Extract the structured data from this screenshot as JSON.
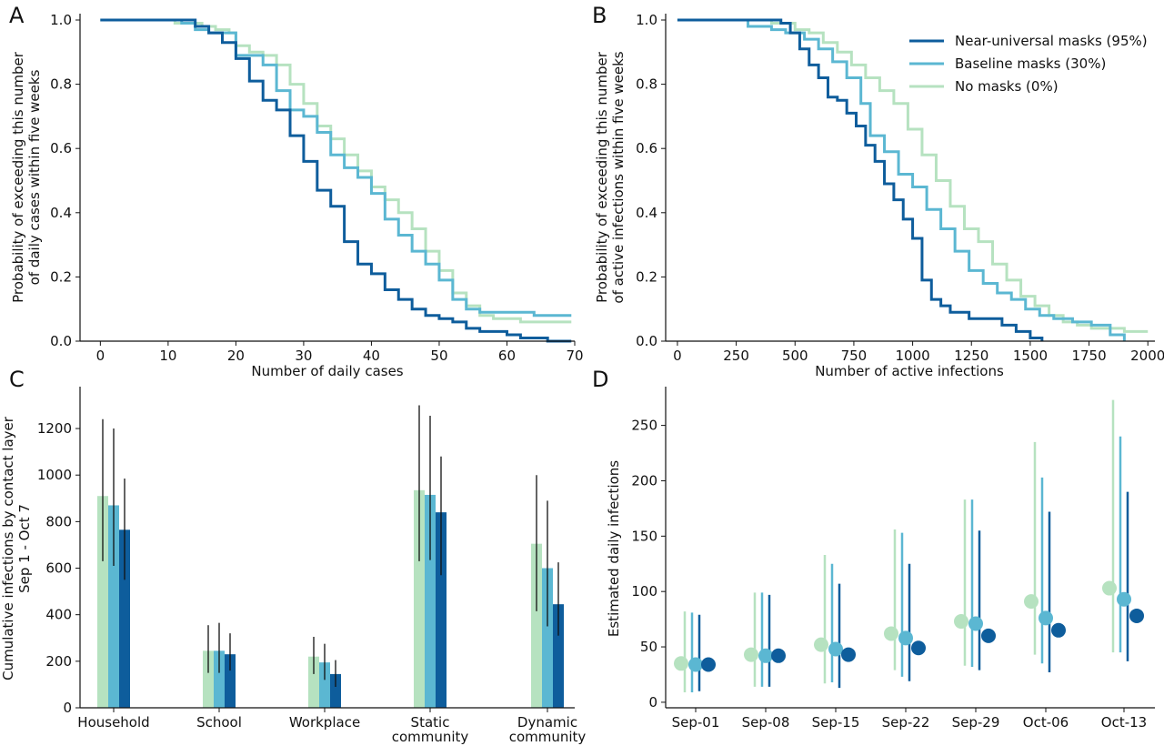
{
  "colors": {
    "near_universal": "#0e5d9c",
    "baseline": "#5bb7d2",
    "no_masks": "#b6e2c0",
    "errorbar_c": "#111111"
  },
  "chart_data": [
    {
      "id": "A",
      "type": "line",
      "panel_label": "A",
      "xlabel": "Number of daily cases",
      "ylabel": [
        "Probability of exceeding this number",
        "of daily cases within five weeks"
      ],
      "xlim": [
        -3,
        70
      ],
      "ylim": [
        0,
        1
      ],
      "xticks": [
        0,
        10,
        20,
        30,
        40,
        50,
        60,
        70
      ],
      "yticks": [
        0.0,
        0.2,
        0.4,
        0.6,
        0.8,
        1.0
      ],
      "yticklabels": [
        "0.0",
        "0.2",
        "0.4",
        "0.6",
        "0.8",
        "1.0"
      ],
      "series": [
        {
          "key": "no_masks",
          "x": [
            0,
            7,
            11,
            13,
            15,
            17,
            19,
            20,
            22,
            24,
            26,
            28,
            30,
            32,
            34,
            36,
            38,
            40,
            42,
            44,
            46,
            48,
            50,
            52,
            54,
            56,
            58,
            60,
            62,
            64,
            66,
            69.5
          ],
          "y": [
            1,
            1,
            0.99,
            0.99,
            0.98,
            0.97,
            0.96,
            0.92,
            0.9,
            0.89,
            0.86,
            0.8,
            0.74,
            0.67,
            0.63,
            0.58,
            0.53,
            0.48,
            0.44,
            0.4,
            0.35,
            0.28,
            0.22,
            0.15,
            0.11,
            0.08,
            0.07,
            0.07,
            0.06,
            0.06,
            0.06,
            0.06
          ]
        },
        {
          "key": "baseline",
          "x": [
            0,
            7,
            12,
            14,
            16,
            18,
            19,
            20,
            22,
            24,
            26,
            28,
            30,
            32,
            34,
            36,
            38,
            40,
            42,
            44,
            46,
            48,
            50,
            52,
            54,
            56,
            58,
            60,
            62,
            64,
            66,
            69.5
          ],
          "y": [
            1,
            1,
            0.99,
            0.97,
            0.96,
            0.96,
            0.96,
            0.89,
            0.89,
            0.86,
            0.78,
            0.72,
            0.7,
            0.65,
            0.58,
            0.54,
            0.51,
            0.46,
            0.38,
            0.33,
            0.28,
            0.24,
            0.19,
            0.13,
            0.1,
            0.09,
            0.09,
            0.09,
            0.09,
            0.08,
            0.08,
            0.08
          ]
        },
        {
          "key": "near_universal",
          "x": [
            0,
            7,
            12,
            14,
            16,
            18,
            20,
            22,
            24,
            26,
            28,
            30,
            32,
            34,
            36,
            38,
            40,
            42,
            44,
            46,
            48,
            50,
            52,
            54,
            56,
            58,
            60,
            62,
            64,
            66,
            69.5
          ],
          "y": [
            1,
            1,
            1,
            0.98,
            0.96,
            0.93,
            0.88,
            0.81,
            0.75,
            0.72,
            0.64,
            0.56,
            0.47,
            0.42,
            0.31,
            0.24,
            0.21,
            0.16,
            0.13,
            0.1,
            0.08,
            0.07,
            0.06,
            0.04,
            0.03,
            0.03,
            0.02,
            0.01,
            0.01,
            0.0,
            0.0
          ]
        }
      ]
    },
    {
      "id": "B",
      "type": "line",
      "panel_label": "B",
      "xlabel": "Number of active infections",
      "ylabel": [
        "Probability of exceeding this number",
        "of active infections within five weeks"
      ],
      "xlim": [
        -50,
        2030
      ],
      "ylim": [
        0,
        1
      ],
      "xticks": [
        0,
        250,
        500,
        750,
        1000,
        1250,
        1500,
        1750,
        2000
      ],
      "yticks": [
        0.0,
        0.2,
        0.4,
        0.6,
        0.8,
        1.0
      ],
      "yticklabels": [
        "0.0",
        "0.2",
        "0.4",
        "0.6",
        "0.8",
        "1.0"
      ],
      "legend": {
        "position": "top-right",
        "entries": [
          {
            "key": "near_universal",
            "label": "Near-universal masks (95%)"
          },
          {
            "key": "baseline",
            "label": "Baseline masks (30%)"
          },
          {
            "key": "no_masks",
            "label": "No masks (0%)"
          }
        ]
      },
      "series": [
        {
          "key": "no_masks",
          "x": [
            0,
            280,
            400,
            500,
            560,
            620,
            680,
            740,
            800,
            860,
            920,
            980,
            1040,
            1100,
            1160,
            1220,
            1280,
            1340,
            1400,
            1460,
            1520,
            1580,
            1640,
            1700,
            1760,
            1820,
            1900,
            2000
          ],
          "y": [
            1,
            1,
            0.99,
            0.97,
            0.96,
            0.93,
            0.9,
            0.86,
            0.82,
            0.78,
            0.74,
            0.66,
            0.58,
            0.5,
            0.42,
            0.35,
            0.31,
            0.24,
            0.19,
            0.14,
            0.11,
            0.08,
            0.06,
            0.05,
            0.04,
            0.04,
            0.03,
            0.03
          ]
        },
        {
          "key": "baseline",
          "x": [
            0,
            280,
            300,
            400,
            460,
            540,
            600,
            660,
            720,
            780,
            820,
            880,
            940,
            1000,
            1060,
            1120,
            1180,
            1240,
            1300,
            1360,
            1420,
            1480,
            1540,
            1600,
            1680,
            1760,
            1840,
            1900
          ],
          "y": [
            1,
            1,
            0.98,
            0.97,
            0.96,
            0.94,
            0.91,
            0.87,
            0.82,
            0.74,
            0.64,
            0.59,
            0.52,
            0.48,
            0.41,
            0.35,
            0.28,
            0.22,
            0.18,
            0.15,
            0.13,
            0.1,
            0.08,
            0.07,
            0.06,
            0.05,
            0.02,
            0.0
          ]
        },
        {
          "key": "near_universal",
          "x": [
            0,
            300,
            440,
            480,
            520,
            560,
            600,
            640,
            680,
            720,
            760,
            800,
            840,
            880,
            920,
            960,
            1000,
            1040,
            1080,
            1120,
            1160,
            1240,
            1320,
            1380,
            1440,
            1500,
            1550
          ],
          "y": [
            1,
            1,
            0.99,
            0.96,
            0.91,
            0.86,
            0.82,
            0.76,
            0.75,
            0.71,
            0.67,
            0.61,
            0.56,
            0.49,
            0.44,
            0.38,
            0.32,
            0.19,
            0.13,
            0.11,
            0.09,
            0.07,
            0.07,
            0.05,
            0.03,
            0.01,
            0.0
          ]
        }
      ]
    },
    {
      "id": "C",
      "type": "bar",
      "panel_label": "C",
      "ylabel": [
        "Cumulative infections by contact layer",
        "Sep 1 - Oct 7"
      ],
      "categories": [
        [
          "Household"
        ],
        [
          "School"
        ],
        [
          "Workplace"
        ],
        [
          "Static",
          "community"
        ],
        [
          "Dynamic",
          "community"
        ]
      ],
      "ylim": [
        0,
        1380
      ],
      "yticks": [
        0,
        200,
        400,
        600,
        800,
        1000,
        1200
      ],
      "series": [
        {
          "key": "no_masks",
          "values": [
            910,
            245,
            220,
            935,
            705
          ],
          "err_low": [
            630,
            150,
            145,
            630,
            415
          ],
          "err_high": [
            1240,
            355,
            305,
            1300,
            1000
          ]
        },
        {
          "key": "baseline",
          "values": [
            870,
            245,
            195,
            915,
            600
          ],
          "err_low": [
            610,
            150,
            120,
            635,
            350
          ],
          "err_high": [
            1200,
            365,
            275,
            1255,
            890
          ]
        },
        {
          "key": "near_universal",
          "values": [
            765,
            230,
            145,
            840,
            445
          ],
          "err_low": [
            550,
            160,
            90,
            570,
            310
          ],
          "err_high": [
            985,
            320,
            205,
            1080,
            625
          ]
        }
      ]
    },
    {
      "id": "D",
      "type": "scatter",
      "panel_label": "D",
      "ylabel": [
        "Estimated daily infections"
      ],
      "categories": [
        "Sep-01",
        "Sep-08",
        "Sep-15",
        "Sep-22",
        "Sep-29",
        "Oct-06",
        "Oct-13"
      ],
      "ylim": [
        -5,
        285
      ],
      "yticks": [
        0,
        50,
        100,
        150,
        200,
        250
      ],
      "series": [
        {
          "key": "no_masks",
          "values": [
            35,
            43,
            52,
            62,
            73,
            91,
            103
          ],
          "err_low": [
            9,
            14,
            17,
            29,
            33,
            43,
            45
          ],
          "err_high": [
            82,
            99,
            133,
            156,
            183,
            235,
            273
          ]
        },
        {
          "key": "baseline",
          "values": [
            34,
            42,
            48,
            58,
            71,
            76,
            93
          ],
          "err_low": [
            9,
            14,
            18,
            23,
            32,
            35,
            45
          ],
          "err_high": [
            81,
            99,
            125,
            153,
            183,
            203,
            240
          ]
        },
        {
          "key": "near_universal",
          "values": [
            34,
            42,
            43,
            49,
            60,
            65,
            78
          ],
          "err_low": [
            10,
            14,
            13,
            19,
            29,
            27,
            37
          ],
          "err_high": [
            79,
            97,
            107,
            125,
            155,
            172,
            190
          ]
        }
      ]
    }
  ]
}
